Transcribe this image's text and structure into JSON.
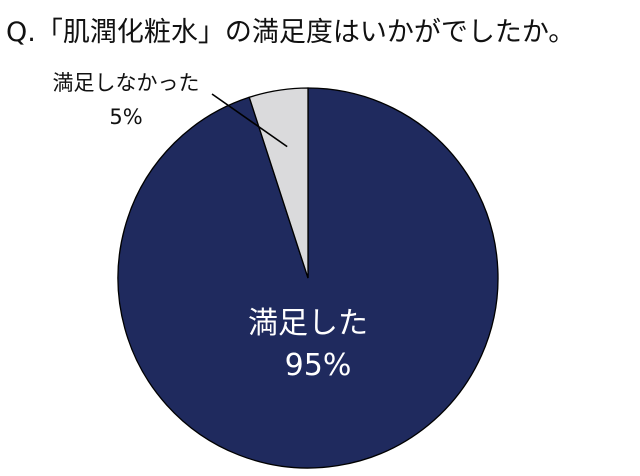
{
  "chart_data": {
    "type": "pie",
    "title": "Q.「肌潤化粧水」の満足度はいかがでしたか。",
    "slices": [
      {
        "label": "満足した",
        "value": 95,
        "value_label": "95%",
        "color": "#1f2a5e"
      },
      {
        "label": "満足しなかった",
        "value": 5,
        "value_label": "5%",
        "color": "#dadadc"
      }
    ],
    "legend": "none",
    "start_angle": "12 o'clock",
    "direction": "clockwise"
  }
}
